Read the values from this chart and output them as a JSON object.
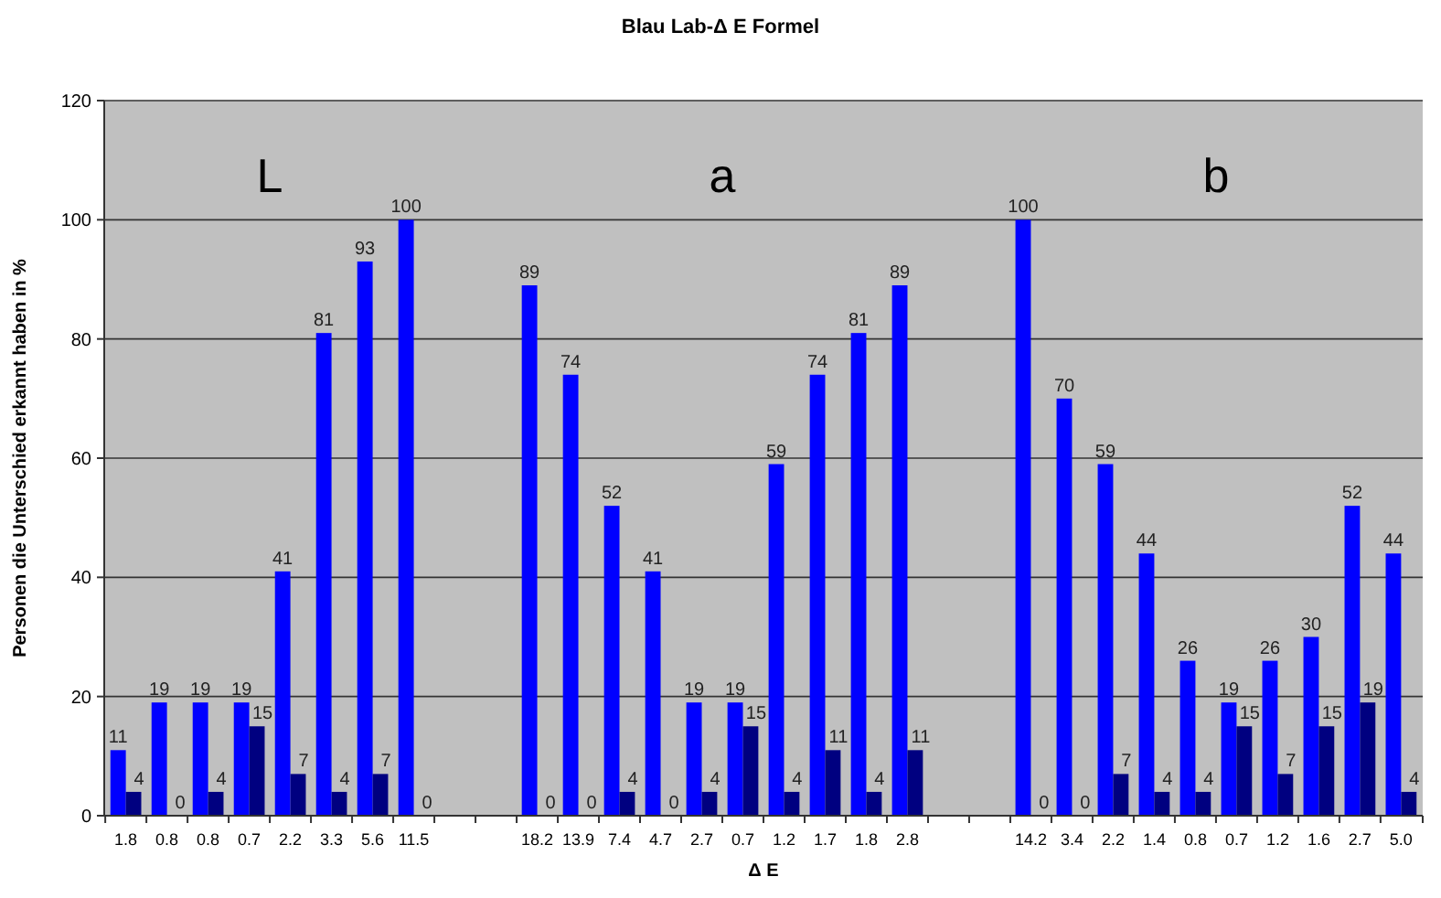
{
  "chart_data": {
    "type": "bar",
    "title": "Blau Lab-Δ E Formel",
    "xlabel": "Δ E",
    "ylabel": "Personen die Unterschied erkannt haben in %",
    "categories": [
      "1.8",
      "0.8",
      "0.8",
      "0.7",
      "2.2",
      "3.3",
      "5.6",
      "11.5",
      null,
      null,
      "18.2",
      "13.9",
      "7.4",
      "4.7",
      "2.7",
      "0.7",
      "1.2",
      "1.7",
      "1.8",
      "2.8",
      null,
      null,
      "14.2",
      "3.4",
      "2.2",
      "1.4",
      "0.8",
      "0.7",
      "1.2",
      "1.6",
      "2.7",
      "5.0"
    ],
    "series": [
      {
        "color": "#0000ff",
        "values": [
          11,
          19,
          19,
          19,
          41,
          81,
          93,
          100,
          null,
          null,
          89,
          74,
          52,
          41,
          19,
          19,
          59,
          74,
          81,
          89,
          null,
          null,
          100,
          70,
          59,
          44,
          26,
          19,
          26,
          30,
          52,
          44
        ]
      },
      {
        "color": "#000080",
        "values": [
          4,
          0,
          4,
          15,
          7,
          4,
          7,
          0,
          null,
          null,
          0,
          0,
          4,
          0,
          4,
          15,
          4,
          11,
          4,
          11,
          null,
          null,
          0,
          0,
          7,
          4,
          4,
          15,
          7,
          15,
          19,
          4
        ]
      }
    ],
    "ylim": [
      0,
      120
    ],
    "yticks": [
      0,
      20,
      40,
      60,
      80,
      100,
      120
    ],
    "grid": "y",
    "data_labels": true,
    "annotations": [
      "L",
      "a",
      "b"
    ]
  }
}
